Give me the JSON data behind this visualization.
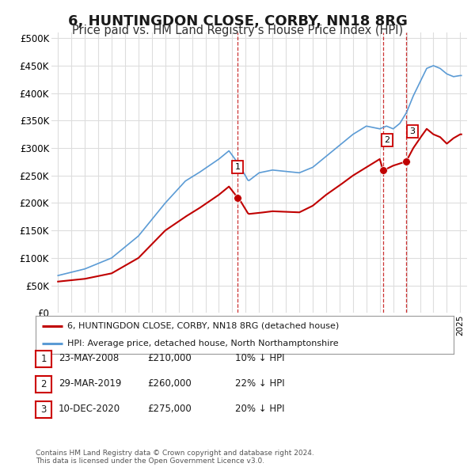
{
  "title": "6, HUNTINGDON CLOSE, CORBY, NN18 8RG",
  "subtitle": "Price paid vs. HM Land Registry's House Price Index (HPI)",
  "title_fontsize": 13,
  "subtitle_fontsize": 10.5,
  "background_color": "#ffffff",
  "grid_color": "#dddddd",
  "hpi_color": "#5b9bd5",
  "price_color": "#c00000",
  "ylim": [
    0,
    510000
  ],
  "yticks": [
    0,
    50000,
    100000,
    150000,
    200000,
    250000,
    300000,
    350000,
    400000,
    450000,
    500000
  ],
  "xlim_start": 1994.5,
  "xlim_end": 2025.5,
  "sale_points": [
    {
      "label": "1",
      "year": 2008.39,
      "price": 210000
    },
    {
      "label": "2",
      "year": 2019.24,
      "price": 260000
    },
    {
      "label": "3",
      "year": 2020.94,
      "price": 275000
    }
  ],
  "sale_label_offsets": {
    "1": [
      0.0,
      55000
    ],
    "2": [
      0.3,
      55000
    ],
    "3": [
      0.5,
      55000
    ]
  },
  "sale_table": [
    {
      "num": "1",
      "date": "23-MAY-2008",
      "price": "£210,000",
      "pct": "10%",
      "dir": "↓",
      "vs": "HPI"
    },
    {
      "num": "2",
      "date": "29-MAR-2019",
      "price": "£260,000",
      "pct": "22%",
      "dir": "↓",
      "vs": "HPI"
    },
    {
      "num": "3",
      "date": "10-DEC-2020",
      "price": "£275,000",
      "pct": "20%",
      "dir": "↓",
      "vs": "HPI"
    }
  ],
  "legend_line1": "6, HUNTINGDON CLOSE, CORBY, NN18 8RG (detached house)",
  "legend_line2": "HPI: Average price, detached house, North Northamptonshire",
  "footer1": "Contains HM Land Registry data © Crown copyright and database right 2024.",
  "footer2": "This data is licensed under the Open Government Licence v3.0."
}
